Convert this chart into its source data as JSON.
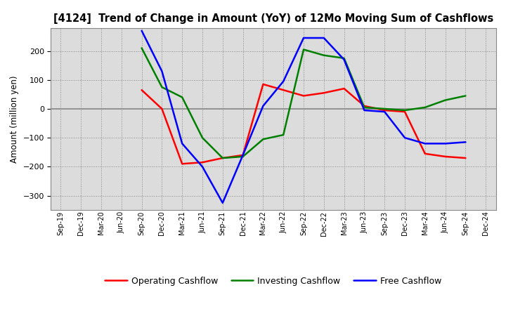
{
  "title": "[4124]  Trend of Change in Amount (YoY) of 12Mo Moving Sum of Cashflows",
  "ylabel": "Amount (million yen)",
  "x_labels": [
    "Sep-19",
    "Dec-19",
    "Mar-20",
    "Jun-20",
    "Sep-20",
    "Dec-20",
    "Mar-21",
    "Jun-21",
    "Sep-21",
    "Dec-21",
    "Mar-22",
    "Jun-22",
    "Sep-22",
    "Dec-22",
    "Mar-23",
    "Jun-23",
    "Sep-23",
    "Dec-23",
    "Mar-24",
    "Jun-24",
    "Sep-24",
    "Dec-24"
  ],
  "operating_data": {
    "Sep-20": 65,
    "Dec-20": 0,
    "Mar-21": -190,
    "Jun-21": -185,
    "Sep-21": -170,
    "Dec-21": -160,
    "Mar-22": 85,
    "Jun-22": 65,
    "Sep-22": 45,
    "Dec-22": 55,
    "Mar-23": 70,
    "Jun-23": 10,
    "Sep-23": -5,
    "Dec-23": -10,
    "Mar-24": -155,
    "Jun-24": -165,
    "Sep-24": -170
  },
  "investing_data": {
    "Sep-20": 210,
    "Dec-20": 75,
    "Mar-21": 40,
    "Jun-21": -100,
    "Sep-21": -170,
    "Dec-21": -165,
    "Mar-22": -105,
    "Jun-22": -90,
    "Sep-22": 205,
    "Dec-22": 185,
    "Mar-23": 175,
    "Jun-23": 5,
    "Sep-23": 0,
    "Dec-23": -5,
    "Mar-24": 5,
    "Jun-24": 30,
    "Sep-24": 45
  },
  "free_data": {
    "Sep-20": 270,
    "Dec-20": 130,
    "Mar-21": -120,
    "Jun-21": -200,
    "Sep-21": -325,
    "Dec-21": -160,
    "Mar-22": 10,
    "Jun-22": 95,
    "Sep-22": 245,
    "Dec-22": 245,
    "Mar-23": 170,
    "Jun-23": -5,
    "Sep-23": -10,
    "Dec-23": -100,
    "Mar-24": -120,
    "Jun-24": -120,
    "Sep-24": -115
  },
  "colors": {
    "operating": "#FF0000",
    "investing": "#008000",
    "free": "#0000FF"
  },
  "ylim": [
    -350,
    280
  ],
  "yticks": [
    -300,
    -200,
    -100,
    0,
    100,
    200
  ],
  "background_color": "#FFFFFF",
  "plot_bg_color": "#DCDCDC"
}
